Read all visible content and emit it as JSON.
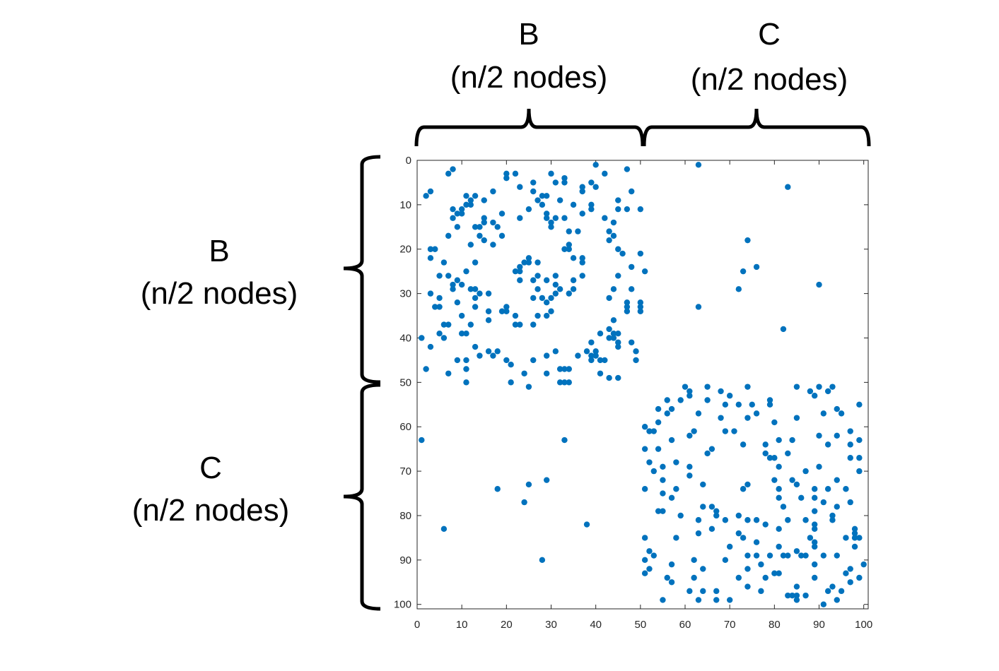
{
  "labels": {
    "top_left_letter": "B",
    "top_left_sub": "(n/2 nodes)",
    "top_right_letter": "C",
    "top_right_sub": "(n/2 nodes)",
    "left_top_letter": "B",
    "left_top_sub": "(n/2 nodes)",
    "left_bottom_letter": "C",
    "left_bottom_sub": "(n/2 nodes)"
  },
  "chart_data": {
    "type": "scatter",
    "title": "",
    "xlabel": "",
    "ylabel": "",
    "xlim": [
      0,
      101
    ],
    "ylim": [
      0,
      101
    ],
    "y_reversed": true,
    "grid": false,
    "marker_color": "#0072BD",
    "xticks": [
      "0",
      "10",
      "20",
      "30",
      "40",
      "50",
      "60",
      "70",
      "80",
      "90",
      "100"
    ],
    "yticks": [
      "0",
      "10",
      "20",
      "30",
      "40",
      "50",
      "60",
      "70",
      "80",
      "90",
      "100"
    ],
    "points": [
      [
        8,
        2
      ],
      [
        7,
        3
      ],
      [
        20,
        3
      ],
      [
        20,
        4
      ],
      [
        22,
        3
      ],
      [
        40,
        1
      ],
      [
        42,
        3
      ],
      [
        47,
        2
      ],
      [
        30,
        3
      ],
      [
        31,
        5
      ],
      [
        33,
        4
      ],
      [
        33,
        5
      ],
      [
        26,
        5
      ],
      [
        23,
        6
      ],
      [
        26,
        7
      ],
      [
        28,
        8
      ],
      [
        29,
        8
      ],
      [
        27,
        9
      ],
      [
        28,
        10
      ],
      [
        32,
        9
      ],
      [
        35,
        10
      ],
      [
        39,
        5
      ],
      [
        40,
        6
      ],
      [
        37,
        6
      ],
      [
        37,
        7
      ],
      [
        39,
        10
      ],
      [
        39,
        11
      ],
      [
        37,
        12
      ],
      [
        45,
        9
      ],
      [
        48,
        7
      ],
      [
        45,
        11
      ],
      [
        47,
        11
      ],
      [
        50,
        11
      ],
      [
        2,
        8
      ],
      [
        3,
        7
      ],
      [
        11,
        8
      ],
      [
        13,
        8
      ],
      [
        12,
        9
      ],
      [
        11,
        10
      ],
      [
        12,
        10
      ],
      [
        8,
        11
      ],
      [
        10,
        11
      ],
      [
        9,
        12
      ],
      [
        10,
        12
      ],
      [
        8,
        13
      ],
      [
        15,
        9
      ],
      [
        17,
        7
      ],
      [
        19,
        12
      ],
      [
        25,
        11
      ],
      [
        23,
        13
      ],
      [
        29,
        12
      ],
      [
        29,
        13
      ],
      [
        30,
        14
      ],
      [
        31,
        13
      ],
      [
        30,
        15
      ],
      [
        33,
        13
      ],
      [
        34,
        16
      ],
      [
        36,
        16
      ],
      [
        42,
        13
      ],
      [
        44,
        14
      ],
      [
        43,
        16
      ],
      [
        44,
        17
      ],
      [
        43,
        18
      ],
      [
        9,
        15
      ],
      [
        7,
        17
      ],
      [
        13,
        15
      ],
      [
        14,
        15
      ],
      [
        15,
        13
      ],
      [
        15,
        14
      ],
      [
        17,
        14
      ],
      [
        18,
        15
      ],
      [
        14,
        17
      ],
      [
        15,
        18
      ],
      [
        19,
        17
      ],
      [
        17,
        19
      ],
      [
        12,
        19
      ],
      [
        3,
        20
      ],
      [
        4,
        20
      ],
      [
        3,
        22
      ],
      [
        6,
        23
      ],
      [
        13,
        23
      ],
      [
        11,
        25
      ],
      [
        5,
        26
      ],
      [
        7,
        26
      ],
      [
        9,
        27
      ],
      [
        8,
        28
      ],
      [
        10,
        28
      ],
      [
        8,
        29
      ],
      [
        12,
        29
      ],
      [
        13,
        29
      ],
      [
        14,
        30
      ],
      [
        13,
        31
      ],
      [
        16,
        30
      ],
      [
        3,
        30
      ],
      [
        5,
        31
      ],
      [
        9,
        32
      ],
      [
        4,
        33
      ],
      [
        5,
        33
      ],
      [
        13,
        33
      ],
      [
        16,
        34
      ],
      [
        10,
        35
      ],
      [
        16,
        36
      ],
      [
        6,
        37
      ],
      [
        7,
        37
      ],
      [
        12,
        37
      ],
      [
        5,
        39
      ],
      [
        6,
        40
      ],
      [
        10,
        39
      ],
      [
        11,
        39
      ],
      [
        1,
        40
      ],
      [
        3,
        42
      ],
      [
        13,
        42
      ],
      [
        9,
        45
      ],
      [
        11,
        45
      ],
      [
        14,
        44
      ],
      [
        16,
        43
      ],
      [
        17,
        44
      ],
      [
        18,
        43
      ],
      [
        2,
        47
      ],
      [
        7,
        48
      ],
      [
        11,
        47
      ],
      [
        11,
        50
      ],
      [
        22,
        25
      ],
      [
        23,
        24
      ],
      [
        24,
        23
      ],
      [
        25,
        22
      ],
      [
        25,
        23
      ],
      [
        23,
        25
      ],
      [
        27,
        23
      ],
      [
        23,
        27
      ],
      [
        26,
        27
      ],
      [
        27,
        26
      ],
      [
        29,
        27
      ],
      [
        31,
        26
      ],
      [
        27,
        29
      ],
      [
        26,
        31
      ],
      [
        28,
        31
      ],
      [
        29,
        32
      ],
      [
        30,
        31
      ],
      [
        31,
        30
      ],
      [
        31,
        28
      ],
      [
        32,
        29
      ],
      [
        20,
        33
      ],
      [
        19,
        34
      ],
      [
        20,
        34
      ],
      [
        22,
        35
      ],
      [
        22,
        37
      ],
      [
        23,
        37
      ],
      [
        26,
        37
      ],
      [
        27,
        35
      ],
      [
        29,
        35
      ],
      [
        30,
        34
      ],
      [
        33,
        20
      ],
      [
        34,
        20
      ],
      [
        34,
        19
      ],
      [
        35,
        22
      ],
      [
        37,
        22
      ],
      [
        37,
        23
      ],
      [
        37,
        26
      ],
      [
        35,
        27
      ],
      [
        35,
        29
      ],
      [
        34,
        30
      ],
      [
        45,
        20
      ],
      [
        46,
        21
      ],
      [
        50,
        21
      ],
      [
        48,
        24
      ],
      [
        51,
        25
      ],
      [
        45,
        26
      ],
      [
        44,
        29
      ],
      [
        48,
        29
      ],
      [
        43,
        31
      ],
      [
        47,
        32
      ],
      [
        47,
        33
      ],
      [
        47,
        34
      ],
      [
        50,
        32
      ],
      [
        50,
        33
      ],
      [
        50,
        34
      ],
      [
        44,
        36
      ],
      [
        43,
        38
      ],
      [
        43,
        40
      ],
      [
        44,
        39
      ],
      [
        45,
        39
      ],
      [
        44,
        40
      ],
      [
        45,
        41
      ],
      [
        45,
        42
      ],
      [
        48,
        41
      ],
      [
        41,
        39
      ],
      [
        39,
        41
      ],
      [
        49,
        43
      ],
      [
        49,
        45
      ],
      [
        38,
        43
      ],
      [
        39,
        44
      ],
      [
        40,
        43
      ],
      [
        40,
        44
      ],
      [
        39,
        45
      ],
      [
        41,
        45
      ],
      [
        42,
        45
      ],
      [
        36,
        44
      ],
      [
        31,
        43
      ],
      [
        29,
        44
      ],
      [
        26,
        45
      ],
      [
        20,
        45
      ],
      [
        21,
        46
      ],
      [
        24,
        48
      ],
      [
        29,
        48
      ],
      [
        32,
        47
      ],
      [
        33,
        47
      ],
      [
        34,
        47
      ],
      [
        32,
        50
      ],
      [
        33,
        50
      ],
      [
        34,
        50
      ],
      [
        25,
        51
      ],
      [
        21,
        50
      ],
      [
        41,
        48
      ],
      [
        43,
        49
      ],
      [
        45,
        49
      ],
      [
        63,
        1
      ],
      [
        83,
        6
      ],
      [
        74,
        18
      ],
      [
        76,
        24
      ],
      [
        73,
        25
      ],
      [
        72,
        29
      ],
      [
        90,
        28
      ],
      [
        63,
        33
      ],
      [
        82,
        38
      ],
      [
        1,
        63
      ],
      [
        33,
        63
      ],
      [
        18,
        74
      ],
      [
        25,
        73
      ],
      [
        29,
        72
      ],
      [
        24,
        77
      ],
      [
        6,
        83
      ],
      [
        38,
        82
      ],
      [
        28,
        90
      ],
      [
        60,
        51
      ],
      [
        61,
        52
      ],
      [
        61,
        53
      ],
      [
        65,
        51
      ],
      [
        74,
        51
      ],
      [
        85,
        51
      ],
      [
        90,
        51
      ],
      [
        93,
        51
      ],
      [
        92,
        52
      ],
      [
        88,
        52
      ],
      [
        89,
        53
      ],
      [
        68,
        52
      ],
      [
        70,
        53
      ],
      [
        56,
        54
      ],
      [
        59,
        54
      ],
      [
        65,
        54
      ],
      [
        79,
        54
      ],
      [
        79,
        55
      ],
      [
        69,
        55
      ],
      [
        72,
        55
      ],
      [
        75,
        55
      ],
      [
        99,
        55
      ],
      [
        54,
        56
      ],
      [
        57,
        56
      ],
      [
        56,
        57
      ],
      [
        63,
        57
      ],
      [
        76,
        57
      ],
      [
        91,
        57
      ],
      [
        94,
        56
      ],
      [
        95,
        57
      ],
      [
        68,
        58
      ],
      [
        74,
        58
      ],
      [
        85,
        58
      ],
      [
        54,
        59
      ],
      [
        80,
        59
      ],
      [
        51,
        60
      ],
      [
        52,
        61
      ],
      [
        53,
        61
      ],
      [
        61,
        62
      ],
      [
        62,
        61
      ],
      [
        69,
        61
      ],
      [
        71,
        61
      ],
      [
        97,
        61
      ],
      [
        90,
        62
      ],
      [
        94,
        62
      ],
      [
        57,
        63
      ],
      [
        81,
        63
      ],
      [
        84,
        63
      ],
      [
        99,
        63
      ],
      [
        73,
        64
      ],
      [
        78,
        64
      ],
      [
        92,
        64
      ],
      [
        97,
        64
      ],
      [
        51,
        65
      ],
      [
        54,
        65
      ],
      [
        65,
        66
      ],
      [
        66,
        65
      ],
      [
        78,
        66
      ],
      [
        79,
        67
      ],
      [
        80,
        67
      ],
      [
        83,
        66
      ],
      [
        97,
        67
      ],
      [
        99,
        67
      ],
      [
        52,
        68
      ],
      [
        58,
        68
      ],
      [
        55,
        69
      ],
      [
        61,
        69
      ],
      [
        81,
        69
      ],
      [
        90,
        69
      ],
      [
        53,
        70
      ],
      [
        61,
        71
      ],
      [
        87,
        70
      ],
      [
        99,
        70
      ],
      [
        55,
        72
      ],
      [
        80,
        72
      ],
      [
        84,
        72
      ],
      [
        85,
        73
      ],
      [
        94,
        72
      ],
      [
        51,
        74
      ],
      [
        58,
        74
      ],
      [
        55,
        75
      ],
      [
        57,
        76
      ],
      [
        64,
        73
      ],
      [
        73,
        74
      ],
      [
        74,
        73
      ],
      [
        81,
        74
      ],
      [
        81,
        76
      ],
      [
        86,
        76
      ],
      [
        89,
        74
      ],
      [
        89,
        76
      ],
      [
        92,
        74
      ],
      [
        96,
        74
      ],
      [
        91,
        77
      ],
      [
        97,
        77
      ],
      [
        54,
        79
      ],
      [
        55,
        79
      ],
      [
        64,
        78
      ],
      [
        66,
        78
      ],
      [
        67,
        79
      ],
      [
        67,
        80
      ],
      [
        59,
        80
      ],
      [
        63,
        81
      ],
      [
        69,
        81
      ],
      [
        72,
        80
      ],
      [
        74,
        81
      ],
      [
        76,
        81
      ],
      [
        78,
        82
      ],
      [
        82,
        78
      ],
      [
        83,
        81
      ],
      [
        87,
        81
      ],
      [
        89,
        79
      ],
      [
        89,
        82
      ],
      [
        89,
        83
      ],
      [
        94,
        78
      ],
      [
        93,
        80
      ],
      [
        93,
        81
      ],
      [
        81,
        83
      ],
      [
        66,
        83
      ],
      [
        63,
        84
      ],
      [
        51,
        85
      ],
      [
        58,
        85
      ],
      [
        72,
        84
      ],
      [
        73,
        85
      ],
      [
        88,
        85
      ],
      [
        89,
        86
      ],
      [
        89,
        87
      ],
      [
        98,
        83
      ],
      [
        98,
        84
      ],
      [
        98,
        85
      ],
      [
        99,
        85
      ],
      [
        96,
        85
      ],
      [
        98,
        87
      ],
      [
        70,
        87
      ],
      [
        76,
        86
      ],
      [
        81,
        87
      ],
      [
        52,
        88
      ],
      [
        53,
        89
      ],
      [
        51,
        90
      ],
      [
        62,
        90
      ],
      [
        69,
        90
      ],
      [
        74,
        89
      ],
      [
        76,
        89
      ],
      [
        79,
        89
      ],
      [
        82,
        89
      ],
      [
        83,
        89
      ],
      [
        85,
        88
      ],
      [
        86,
        89
      ],
      [
        87,
        89
      ],
      [
        91,
        89
      ],
      [
        94,
        89
      ],
      [
        57,
        91
      ],
      [
        77,
        91
      ],
      [
        89,
        91
      ],
      [
        100,
        91
      ],
      [
        51,
        93
      ],
      [
        52,
        92
      ],
      [
        64,
        92
      ],
      [
        74,
        92
      ],
      [
        80,
        93
      ],
      [
        81,
        93
      ],
      [
        96,
        93
      ],
      [
        97,
        92
      ],
      [
        99,
        94
      ],
      [
        56,
        94
      ],
      [
        57,
        95
      ],
      [
        62,
        94
      ],
      [
        72,
        94
      ],
      [
        78,
        94
      ],
      [
        89,
        94
      ],
      [
        97,
        95
      ],
      [
        74,
        96
      ],
      [
        61,
        97
      ],
      [
        64,
        97
      ],
      [
        67,
        97
      ],
      [
        77,
        97
      ],
      [
        85,
        96
      ],
      [
        92,
        97
      ],
      [
        93,
        96
      ],
      [
        95,
        97
      ],
      [
        83,
        98
      ],
      [
        84,
        98
      ],
      [
        85,
        98
      ],
      [
        85,
        99
      ],
      [
        87,
        98
      ],
      [
        55,
        99
      ],
      [
        63,
        99
      ],
      [
        67,
        99
      ],
      [
        70,
        99
      ],
      [
        94,
        99
      ],
      [
        91,
        100
      ]
    ]
  }
}
